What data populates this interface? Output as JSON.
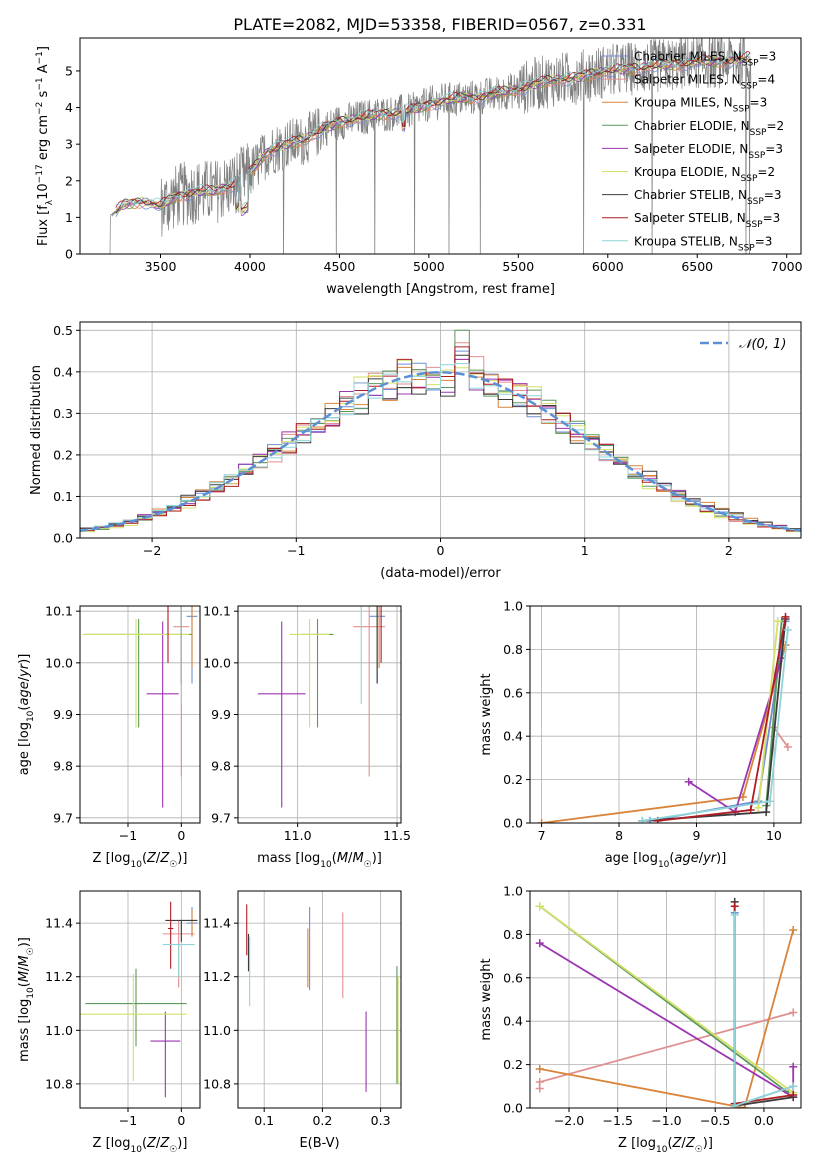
{
  "figure_title": "PLATE=2082, MJD=53358, FIBERID=0567, z=0.331",
  "colors": {
    "Chabrier MILES": "#6f8fd4",
    "Salpeter MILES": "#e09090",
    "Kroupa MILES": "#d9843a",
    "Chabrier ELODIE": "#5c9a5c",
    "Salpeter ELODIE": "#9b35b0",
    "Kroupa ELODIE": "#d4e066",
    "Chabrier STELIB": "#3c3c3c",
    "Salpeter STELIB": "#b01c24",
    "Kroupa STELIB": "#8fd4d8",
    "normal": "#5b8fd6",
    "data": "#808080"
  },
  "chart_data": [
    {
      "id": "spectrum",
      "type": "line",
      "title": "PLATE=2082, MJD=53358, FIBERID=0567, z=0.331",
      "xlabel": "wavelength [Angstrom, rest frame]",
      "ylabel": "Flux [fλ10⁻¹⁷ erg cm⁻² s⁻¹ A⁻¹]",
      "xlim": [
        3050,
        7080
      ],
      "ylim": [
        0,
        5.9
      ],
      "xticks": [
        3500,
        4000,
        4500,
        5000,
        5500,
        6000,
        6500,
        7000
      ],
      "yticks": [
        0,
        1,
        2,
        3,
        4,
        5
      ],
      "grid": false,
      "legend_position": "top-right",
      "legend": [
        "Chabrier MILES, N_SSP=3",
        "Salpeter MILES, N_SSP=4",
        "Kroupa MILES, N_SSP=3",
        "Chabrier ELODIE, N_SSP=2",
        "Salpeter ELODIE, N_SSP=3",
        "Kroupa ELODIE, N_SSP=2",
        "Chabrier STELIB, N_SSP=3",
        "Salpeter STELIB, N_SSP=3",
        "Kroupa STELIB, N_SSP=3"
      ],
      "data_range": [
        3210,
        6800
      ],
      "model_range": [
        3250,
        6800
      ],
      "continuum": [
        [
          3210,
          1.0
        ],
        [
          3300,
          1.35
        ],
        [
          3400,
          1.45
        ],
        [
          3500,
          1.3
        ],
        [
          3600,
          1.6
        ],
        [
          3700,
          1.7
        ],
        [
          3800,
          1.7
        ],
        [
          3900,
          1.9
        ],
        [
          4000,
          2.2
        ],
        [
          4100,
          2.8
        ],
        [
          4200,
          3.0
        ],
        [
          4300,
          3.1
        ],
        [
          4400,
          3.4
        ],
        [
          4500,
          3.6
        ],
        [
          4600,
          3.7
        ],
        [
          4700,
          3.8
        ],
        [
          4800,
          3.85
        ],
        [
          4900,
          3.9
        ],
        [
          5000,
          4.1
        ],
        [
          5100,
          4.2
        ],
        [
          5200,
          4.25
        ],
        [
          5300,
          4.3
        ],
        [
          5400,
          4.4
        ],
        [
          5500,
          4.5
        ],
        [
          5600,
          4.65
        ],
        [
          5700,
          4.75
        ],
        [
          5800,
          4.8
        ],
        [
          5900,
          4.9
        ],
        [
          6000,
          5.0
        ],
        [
          6100,
          5.05
        ],
        [
          6200,
          5.1
        ],
        [
          6300,
          5.15
        ],
        [
          6400,
          5.2
        ],
        [
          6500,
          5.25
        ],
        [
          6600,
          5.25
        ],
        [
          6700,
          5.3
        ],
        [
          6800,
          5.35
        ]
      ]
    },
    {
      "id": "residuals",
      "type": "histogram",
      "xlabel": "(data-model)/error",
      "ylabel": "Normed distribution",
      "xlim": [
        -2.5,
        2.5
      ],
      "ylim": [
        0,
        0.52
      ],
      "xticks": [
        -2,
        -1,
        0,
        1,
        2
      ],
      "yticks": [
        0.0,
        0.1,
        0.2,
        0.3,
        0.4,
        0.5
      ],
      "grid": true,
      "legend_position": "top-right",
      "legend": [
        "𝒩(0, 1)"
      ],
      "bin_width": 0.1,
      "sigma_width": [
        1.0,
        0.97,
        1.03,
        0.98,
        1.02,
        0.96,
        1.04,
        0.99,
        1.01
      ],
      "peak_values": [
        0.45,
        0.47,
        0.43,
        0.5,
        0.43,
        0.41,
        0.44,
        0.46,
        0.42
      ]
    },
    {
      "id": "age-vs-Z",
      "type": "errorbar",
      "xlabel": "Z [log₁₀(Z/Z☉)]",
      "ylabel": "age  [log₁₀(age/yr)]",
      "xlim": [
        -1.9,
        0.35
      ],
      "ylim": [
        9.69,
        10.11
      ],
      "xticks": [
        -1,
        0
      ],
      "yticks": [
        9.7,
        9.8,
        9.9,
        10.0,
        10.1
      ],
      "grid": true,
      "points": [
        {
          "model": "Chabrier MILES",
          "x": 0.2,
          "y": 10.09,
          "xerr": 0.1,
          "yerr": [
            0.13,
            0.02
          ]
        },
        {
          "model": "Salpeter MILES",
          "x": 0.0,
          "y": 10.07,
          "xerr": 0.15,
          "yerr": [
            0.29,
            0.04
          ]
        },
        {
          "model": "Kroupa MILES",
          "x": 0.2,
          "y": 10.12,
          "xerr": 0.1,
          "yerr": [
            0.13,
            0.0
          ]
        },
        {
          "model": "Chabrier ELODIE",
          "x": -0.8,
          "y": 10.055,
          "xerr": 1.0,
          "yerr": [
            0.18,
            0.03
          ]
        },
        {
          "model": "Salpeter ELODIE",
          "x": -0.35,
          "y": 9.94,
          "xerr": 0.3,
          "yerr": [
            0.22,
            0.14
          ]
        },
        {
          "model": "Kroupa ELODIE",
          "x": -0.85,
          "y": 10.055,
          "xerr": 1.0,
          "yerr": [
            0.18,
            0.03
          ]
        },
        {
          "model": "Chabrier STELIB",
          "x": 0.0,
          "y": 10.16,
          "xerr": 0.3,
          "yerr": [
            0.2,
            0.0
          ]
        },
        {
          "model": "Salpeter STELIB",
          "x": -0.25,
          "y": 10.16,
          "xerr": 0.05,
          "yerr": [
            0.16,
            0.0
          ]
        },
        {
          "model": "Kroupa STELIB",
          "x": 0.0,
          "y": 10.12,
          "xerr": 0.3,
          "yerr": [
            0.2,
            0.0
          ]
        }
      ]
    },
    {
      "id": "age-vs-mass",
      "type": "errorbar",
      "xlabel": "mass [log₁₀(M/M☉)]",
      "ylabel": "",
      "xlim": [
        10.7,
        11.52
      ],
      "ylim": [
        9.69,
        10.11
      ],
      "xticks": [
        11.0,
        11.5
      ],
      "yticks": [
        9.7,
        9.8,
        9.9,
        10.0,
        10.1
      ],
      "grid": true,
      "points": [
        {
          "model": "Chabrier MILES",
          "x": 11.4,
          "y": 10.09,
          "xerr": 0.04,
          "yerr": [
            0.13,
            0.02
          ]
        },
        {
          "model": "Salpeter MILES",
          "x": 11.36,
          "y": 10.07,
          "xerr": 0.08,
          "yerr": [
            0.29,
            0.04
          ]
        },
        {
          "model": "Kroupa MILES",
          "x": 11.41,
          "y": 10.12,
          "xerr": 0.04,
          "yerr": [
            0.13,
            0.0
          ]
        },
        {
          "model": "Chabrier ELODIE",
          "x": 11.1,
          "y": 10.055,
          "xerr": 0.08,
          "yerr": [
            0.18,
            0.03
          ]
        },
        {
          "model": "Salpeter ELODIE",
          "x": 10.92,
          "y": 9.94,
          "xerr": 0.12,
          "yerr": [
            0.22,
            0.14
          ]
        },
        {
          "model": "Kroupa ELODIE",
          "x": 11.06,
          "y": 10.055,
          "xerr": 0.1,
          "yerr": [
            0.18,
            0.03
          ]
        },
        {
          "model": "Chabrier STELIB",
          "x": 11.4,
          "y": 10.16,
          "xerr": 0.05,
          "yerr": [
            0.2,
            0.0
          ]
        },
        {
          "model": "Salpeter STELIB",
          "x": 11.42,
          "y": 10.16,
          "xerr": 0.02,
          "yerr": [
            0.16,
            0.0
          ]
        },
        {
          "model": "Kroupa STELIB",
          "x": 11.32,
          "y": 10.12,
          "xerr": 0.08,
          "yerr": [
            0.2,
            0.0
          ]
        }
      ]
    },
    {
      "id": "massweight-vs-age",
      "type": "line",
      "xlabel": "age  [log₁₀(age/yr)]",
      "ylabel": "mass weight",
      "xlim": [
        6.85,
        10.35
      ],
      "ylim": [
        0,
        1.0
      ],
      "xticks": [
        7,
        8,
        9,
        10
      ],
      "yticks": [
        0.0,
        0.2,
        0.4,
        0.6,
        0.8,
        1.0
      ],
      "grid": true,
      "series": [
        {
          "model": "Chabrier MILES",
          "points": [
            [
              8.4,
              0.01
            ],
            [
              9.8,
              0.1
            ],
            [
              10.15,
              0.93
            ]
          ]
        },
        {
          "model": "Salpeter MILES",
          "points": [
            [
              10.0,
              0.44
            ],
            [
              10.18,
              0.35
            ]
          ]
        },
        {
          "model": "Kroupa MILES",
          "points": [
            [
              7.0,
              0.0
            ],
            [
              9.6,
              0.12
            ],
            [
              10.15,
              0.82
            ]
          ]
        },
        {
          "model": "Chabrier ELODIE",
          "points": [
            [
              9.9,
              0.08
            ],
            [
              10.1,
              0.93
            ]
          ]
        },
        {
          "model": "Salpeter ELODIE",
          "points": [
            [
              8.9,
              0.19
            ],
            [
              9.5,
              0.05
            ],
            [
              10.1,
              0.76
            ]
          ]
        },
        {
          "model": "Kroupa ELODIE",
          "points": [
            [
              9.8,
              0.07
            ],
            [
              10.05,
              0.93
            ]
          ]
        },
        {
          "model": "Chabrier STELIB",
          "points": [
            [
              8.3,
              0.01
            ],
            [
              9.9,
              0.05
            ],
            [
              10.15,
              0.94
            ]
          ]
        },
        {
          "model": "Salpeter STELIB",
          "points": [
            [
              8.5,
              0.01
            ],
            [
              9.7,
              0.06
            ],
            [
              10.15,
              0.95
            ]
          ]
        },
        {
          "model": "Kroupa STELIB",
          "points": [
            [
              8.3,
              0.01
            ],
            [
              9.95,
              0.1
            ],
            [
              10.18,
              0.89
            ]
          ]
        }
      ]
    },
    {
      "id": "mass-vs-Z",
      "type": "errorbar",
      "xlabel": "Z [log₁₀(Z/Z☉)]",
      "ylabel": "mass [log₁₀(M/M☉)]",
      "xlim": [
        -1.9,
        0.35
      ],
      "ylim": [
        10.71,
        11.52
      ],
      "xticks": [
        -1,
        0
      ],
      "yticks": [
        10.8,
        11.0,
        11.2,
        11.4
      ],
      "grid": true,
      "points": [
        {
          "model": "Chabrier MILES",
          "x": 0.2,
          "y": 11.4,
          "xerr": 0.1,
          "yerr": [
            0.05,
            0.06
          ]
        },
        {
          "model": "Salpeter MILES",
          "x": -0.05,
          "y": 11.36,
          "xerr": 0.3,
          "yerr": [
            0.2,
            0.05
          ]
        },
        {
          "model": "Kroupa MILES",
          "x": 0.2,
          "y": 11.41,
          "xerr": 0.1,
          "yerr": [
            0.06,
            0.04
          ]
        },
        {
          "model": "Chabrier ELODIE",
          "x": -0.85,
          "y": 11.1,
          "xerr": 0.95,
          "yerr": [
            0.16,
            0.13
          ]
        },
        {
          "model": "Salpeter ELODIE",
          "x": -0.3,
          "y": 10.96,
          "xerr": 0.28,
          "yerr": [
            0.21,
            0.11
          ]
        },
        {
          "model": "Kroupa ELODIE",
          "x": -0.9,
          "y": 11.06,
          "xerr": 1.0,
          "yerr": [
            0.25,
            0.15
          ]
        },
        {
          "model": "Chabrier STELIB",
          "x": 0.0,
          "y": 11.41,
          "xerr": 0.3,
          "yerr": [
            0.08,
            0.0
          ]
        },
        {
          "model": "Salpeter STELIB",
          "x": -0.2,
          "y": 11.38,
          "xerr": 0.05,
          "yerr": [
            0.15,
            0.1
          ]
        },
        {
          "model": "Kroupa STELIB",
          "x": -0.05,
          "y": 11.32,
          "xerr": 0.3,
          "yerr": [
            0.12,
            0.0
          ]
        }
      ]
    },
    {
      "id": "mass-vs-EBV",
      "type": "errorbar",
      "xlabel": "E(B-V)",
      "ylabel": "",
      "xlim": [
        0.055,
        0.335
      ],
      "ylim": [
        10.71,
        11.52
      ],
      "xticks": [
        0.1,
        0.2,
        0.3
      ],
      "yticks": [
        10.8,
        11.0,
        11.2,
        11.4
      ],
      "grid": true,
      "points": [
        {
          "model": "Chabrier MILES",
          "x": 0.178,
          "y": 11.35,
          "yerr": [
            0.2,
            0.11
          ]
        },
        {
          "model": "Salpeter MILES",
          "x": 0.235,
          "y": 11.3,
          "yerr": [
            0.18,
            0.14
          ]
        },
        {
          "model": "Kroupa MILES",
          "x": 0.175,
          "y": 11.3,
          "yerr": [
            0.14,
            0.08
          ]
        },
        {
          "model": "Chabrier ELODIE",
          "x": 0.328,
          "y": 11.0,
          "yerr": [
            0.2,
            0.24
          ]
        },
        {
          "model": "Salpeter ELODIE",
          "x": 0.275,
          "y": 10.9,
          "yerr": [
            0.13,
            0.17
          ]
        },
        {
          "model": "Kroupa ELODIE",
          "x": 0.33,
          "y": 11.0,
          "yerr": [
            0.2,
            0.2
          ]
        },
        {
          "model": "Chabrier STELIB",
          "x": 0.073,
          "y": 11.3,
          "yerr": [
            0.08,
            0.06
          ]
        },
        {
          "model": "Salpeter STELIB",
          "x": 0.07,
          "y": 11.34,
          "yerr": [
            0.06,
            0.13
          ]
        },
        {
          "model": "Kroupa STELIB",
          "x": 0.075,
          "y": 11.25,
          "yerr": [
            0.16,
            0.1
          ]
        }
      ]
    },
    {
      "id": "massweight-vs-Z",
      "type": "line",
      "xlabel": "Z [log₁₀(Z/Z☉)]",
      "ylabel": "mass weight",
      "xlim": [
        -2.4,
        0.38
      ],
      "ylim": [
        0,
        1.0
      ],
      "xticks": [
        -2.0,
        -1.5,
        -1.0,
        -0.5,
        0.0
      ],
      "yticks": [
        0.0,
        0.2,
        0.4,
        0.6,
        0.8,
        1.0
      ],
      "grid": true,
      "series": [
        {
          "model": "Chabrier MILES",
          "points": [
            [
              -0.3,
              0.9
            ],
            [
              -0.3,
              0.01
            ],
            [
              0.3,
              0.1
            ]
          ]
        },
        {
          "model": "Salpeter MILES",
          "points": [
            [
              -2.3,
              0.09
            ],
            [
              -2.3,
              0.12
            ],
            [
              0.3,
              0.44
            ]
          ]
        },
        {
          "model": "Kroupa MILES",
          "points": [
            [
              -2.3,
              0.18
            ],
            [
              -0.2,
              0.0
            ],
            [
              0.3,
              0.82
            ]
          ]
        },
        {
          "model": "Chabrier ELODIE",
          "points": [
            [
              -2.3,
              0.93
            ],
            [
              0.25,
              0.07
            ]
          ]
        },
        {
          "model": "Salpeter ELODIE",
          "points": [
            [
              -2.3,
              0.76
            ],
            [
              0.3,
              0.05
            ],
            [
              0.3,
              0.19
            ]
          ]
        },
        {
          "model": "Kroupa ELODIE",
          "points": [
            [
              -2.3,
              0.93
            ],
            [
              0.3,
              0.07
            ]
          ]
        },
        {
          "model": "Chabrier STELIB",
          "points": [
            [
              -0.3,
              0.95
            ],
            [
              -0.3,
              0.01
            ],
            [
              0.3,
              0.05
            ]
          ]
        },
        {
          "model": "Salpeter STELIB",
          "points": [
            [
              -0.3,
              0.93
            ],
            [
              -0.3,
              0.02
            ],
            [
              0.3,
              0.06
            ]
          ]
        },
        {
          "model": "Kroupa STELIB",
          "points": [
            [
              -0.3,
              0.89
            ],
            [
              -0.3,
              0.01
            ],
            [
              0.3,
              0.1
            ]
          ]
        }
      ]
    }
  ]
}
